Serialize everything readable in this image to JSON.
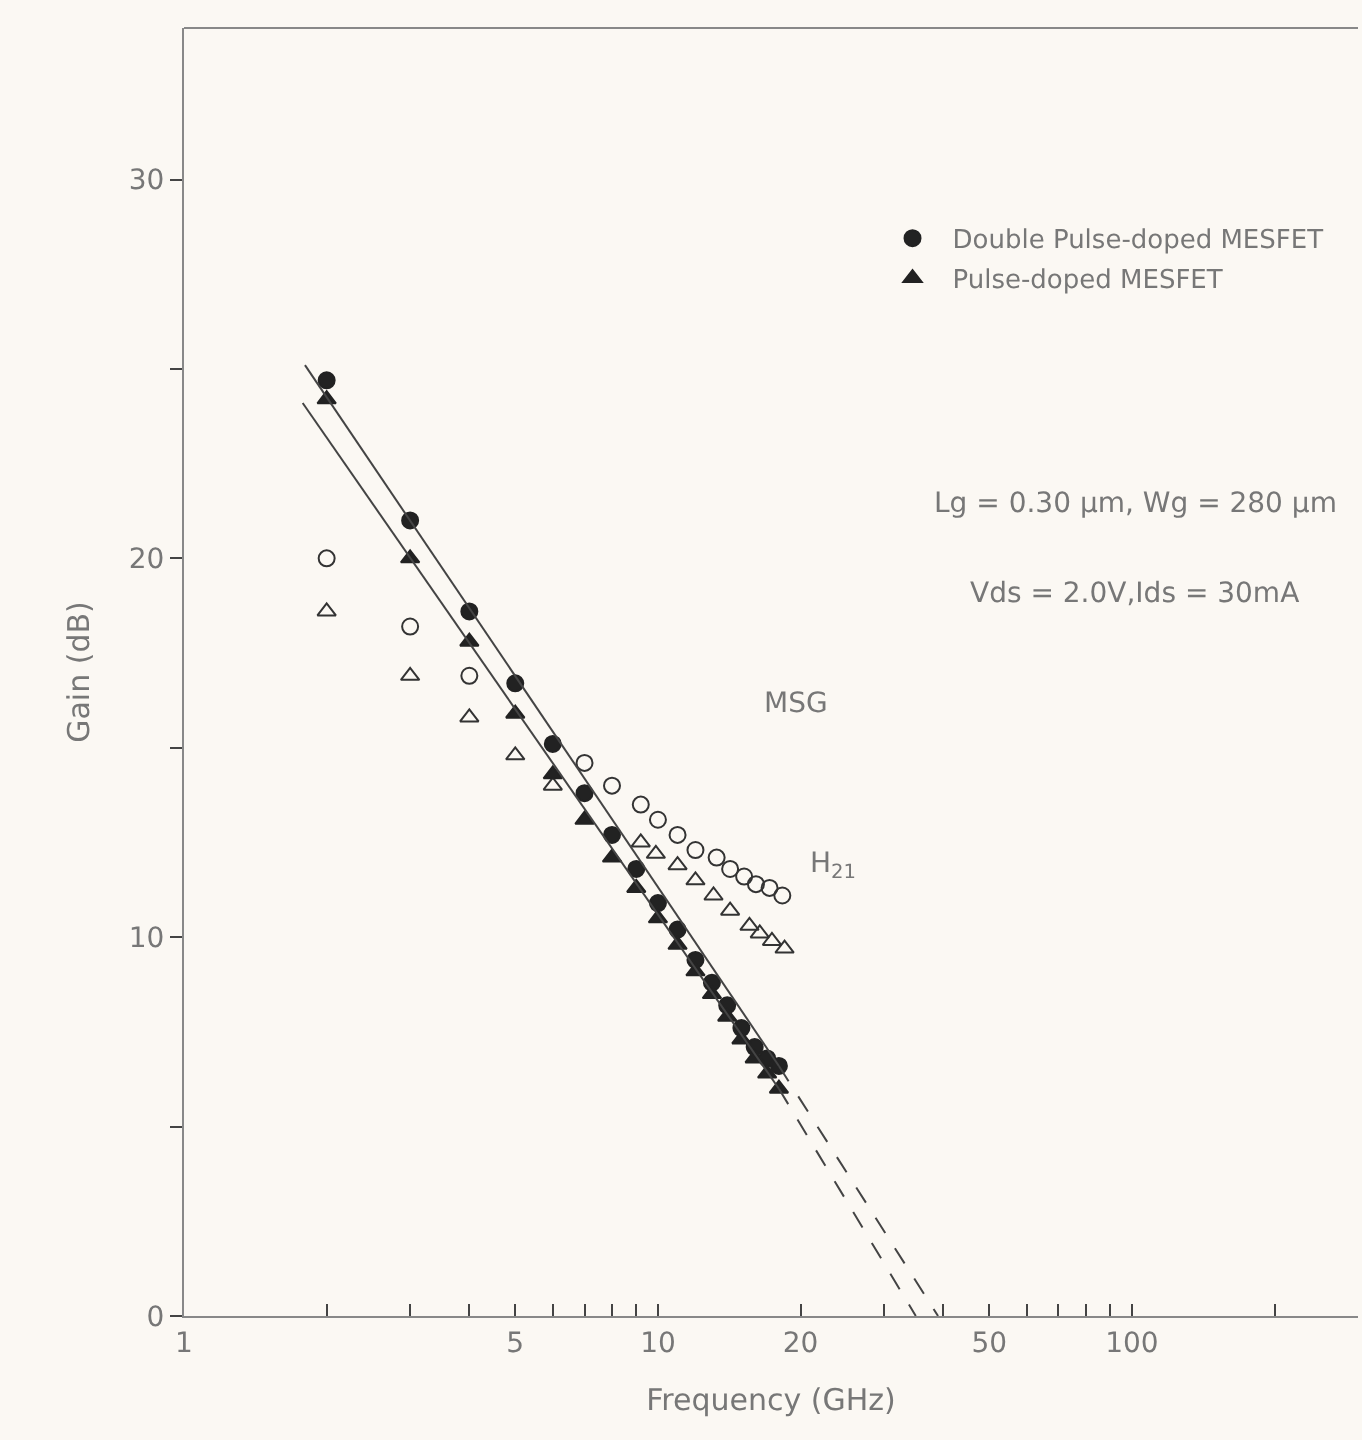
{
  "chart_data": {
    "type": "scatter",
    "xlabel": "Frequency (GHz)",
    "ylabel": "Gain (dB)",
    "log": "x",
    "xlim": [
      1,
      300
    ],
    "ylim": [
      0,
      34
    ],
    "xticks": [
      1,
      {
        "value": 2,
        "label": null
      },
      {
        "value": 3,
        "label": null
      },
      {
        "value": 4,
        "label": null
      },
      5,
      {
        "value": 6,
        "label": null
      },
      {
        "value": 7,
        "label": null
      },
      {
        "value": 8,
        "label": null
      },
      {
        "value": 9,
        "label": null
      },
      10,
      20,
      {
        "value": 30,
        "label": null
      },
      {
        "value": 40,
        "label": null
      },
      50,
      {
        "value": 60,
        "label": null
      },
      {
        "value": 70,
        "label": null
      },
      {
        "value": 80,
        "label": null
      },
      {
        "value": 90,
        "label": null
      },
      100,
      {
        "value": 200,
        "label": null
      }
    ],
    "yticks": [
      0,
      {
        "value": 5,
        "label": null
      },
      10,
      {
        "value": 15,
        "label": null
      },
      20,
      {
        "value": 25,
        "label": null
      },
      30
    ],
    "grid": false,
    "legend": "top right",
    "annotations": [
      "Lg = 0.30 μm, Wg = 280 μm",
      "Vds = 2.0V,Ids = 30mA",
      "MSG",
      "H$_{21}$"
    ],
    "series": [
      {
        "marker": "circle-open",
        "color": "#333333",
        "x": [
          2,
          3,
          4,
          7,
          8,
          9.2,
          10,
          11,
          12,
          13.3,
          14.2,
          15.2,
          16.1,
          17.2,
          18.3
        ],
        "values": [
          20.0,
          18.2,
          16.9,
          14.6,
          14.0,
          13.5,
          13.1,
          12.7,
          12.3,
          12.1,
          11.8,
          11.6,
          11.4,
          11.3,
          11.1
        ]
      },
      {
        "name": "Double Pulse-doped MESFET",
        "marker": "circle",
        "color": "#222222",
        "x": [
          2,
          3,
          4,
          5,
          6,
          7,
          8,
          9,
          10,
          11,
          12,
          13,
          14,
          15,
          16,
          17,
          18
        ],
        "values": [
          24.7,
          21.0,
          18.6,
          16.7,
          15.1,
          13.8,
          12.7,
          11.8,
          10.9,
          10.2,
          9.4,
          8.8,
          8.2,
          7.6,
          7.1,
          6.8,
          6.6
        ]
      },
      {
        "marker": "triangle-open",
        "color": "#333333",
        "x": [
          2,
          3,
          4,
          5,
          6,
          9.2,
          9.9,
          11,
          12,
          13.1,
          14.2,
          15.6,
          16.4,
          17.4,
          18.5
        ],
        "values": [
          18.6,
          16.9,
          15.8,
          14.8,
          14.0,
          12.5,
          12.2,
          11.9,
          11.5,
          11.1,
          10.7,
          10.3,
          10.1,
          9.9,
          9.7
        ]
      },
      {
        "name": "Pulse-doped MESFET",
        "marker": "triangle",
        "color": "#222222",
        "x": [
          2,
          3,
          4,
          5,
          6,
          7,
          8,
          9,
          10,
          11,
          12,
          13,
          14,
          15,
          16,
          17,
          18
        ],
        "values": [
          24.2,
          20.0,
          17.8,
          15.9,
          14.3,
          13.1,
          12.1,
          11.3,
          10.5,
          9.8,
          9.1,
          8.5,
          7.9,
          7.3,
          6.8,
          6.4,
          6.0
        ]
      },
      {
        "type": "line",
        "line_style": "solid",
        "color": "#444444",
        "x": [
          1.8,
          18
        ],
        "values": [
          25.1,
          6.6
        ]
      },
      {
        "type": "line",
        "line_style": "dashed",
        "color": "#444444",
        "x": [
          18,
          39
        ],
        "values": [
          6.6,
          0
        ]
      },
      {
        "type": "line",
        "line_style": "solid",
        "color": "#444444",
        "x": [
          1.78,
          18
        ],
        "values": [
          24.1,
          6.0
        ]
      },
      {
        "type": "line",
        "line_style": "dashed",
        "color": "#444444",
        "x": [
          18,
          35
        ],
        "values": [
          6.0,
          0
        ]
      }
    ]
  }
}
